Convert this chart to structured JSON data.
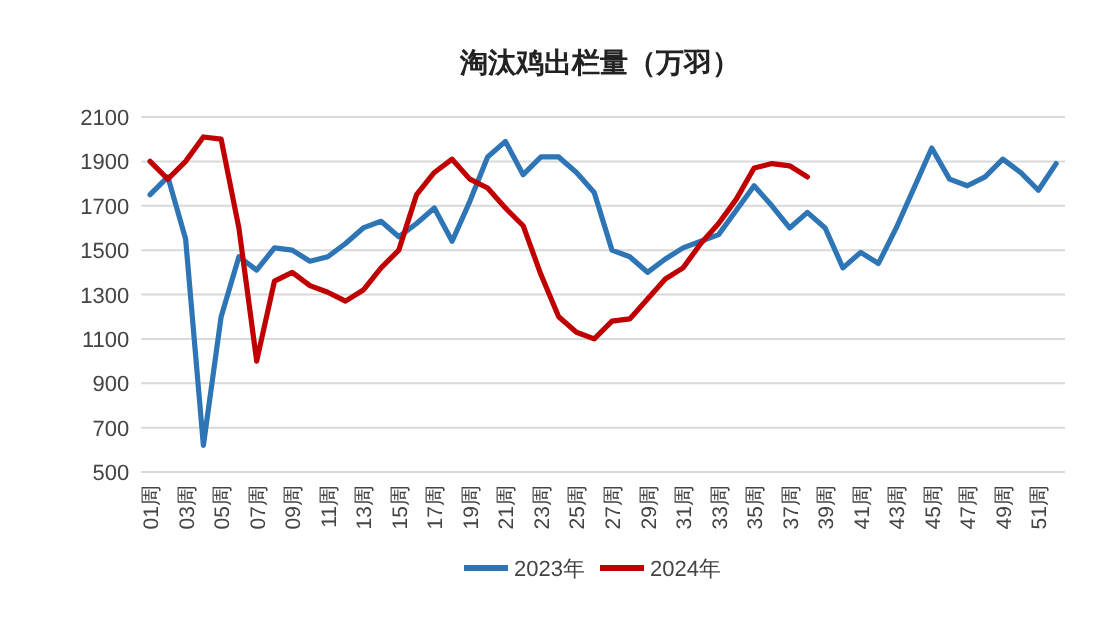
{
  "chart_data": {
    "type": "line",
    "title": "淘汰鸡出栏量（万羽）",
    "categories": [
      "01周",
      null,
      "03周",
      null,
      "05周",
      null,
      "07周",
      null,
      "09周",
      null,
      "11周",
      null,
      "13周",
      null,
      "15周",
      null,
      "17周",
      null,
      "19周",
      null,
      "21周",
      null,
      "23周",
      null,
      "25周",
      null,
      "27周",
      null,
      "29周",
      null,
      "31周",
      null,
      "33周",
      null,
      "35周",
      null,
      "37周",
      null,
      "39周",
      null,
      "41周",
      null,
      "43周",
      null,
      "45周",
      null,
      "47周",
      null,
      "49周",
      null,
      "51周",
      null
    ],
    "series": [
      {
        "name": "2023年",
        "color": "#2e75b6",
        "values": [
          1750,
          1830,
          1550,
          620,
          1200,
          1470,
          1410,
          1510,
          1500,
          1450,
          1470,
          1530,
          1600,
          1630,
          1560,
          1620,
          1690,
          1540,
          1720,
          1920,
          1990,
          1840,
          1920,
          1920,
          1850,
          1760,
          1500,
          1470,
          1400,
          1460,
          1510,
          1540,
          1570,
          1680,
          1790,
          1700,
          1600,
          1670,
          1600,
          1420,
          1490,
          1440,
          1600,
          1780,
          1960,
          1820,
          1790,
          1830,
          1910,
          1850,
          1770,
          1890
        ]
      },
      {
        "name": "2024年",
        "color": "#c00000",
        "values": [
          1900,
          1820,
          1900,
          2010,
          2000,
          1600,
          1000,
          1360,
          1400,
          1340,
          1310,
          1270,
          1320,
          1420,
          1500,
          1750,
          1850,
          1910,
          1820,
          1780,
          1690,
          1610,
          1390,
          1200,
          1130,
          1100,
          1180,
          1190,
          1280,
          1370,
          1420,
          1530,
          1620,
          1730,
          1870,
          1890,
          1880,
          1830,
          null,
          null,
          null,
          null,
          null,
          null,
          null,
          null,
          null,
          null,
          null,
          null,
          null,
          null
        ]
      }
    ],
    "ylim": [
      500,
      2100
    ],
    "yticks": [
      500,
      700,
      900,
      1100,
      1300,
      1500,
      1700,
      1900,
      2100
    ],
    "grid": "y",
    "legend": "bottom",
    "marker": "none",
    "line_style": "solid"
  }
}
